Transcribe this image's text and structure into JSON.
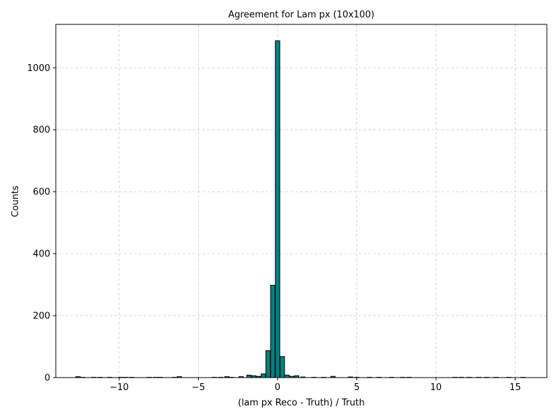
{
  "chart_data": {
    "type": "bar",
    "title": "Agreement for Lam px (10x100)",
    "xlabel": "(lam px Reco - Truth) / Truth",
    "ylabel": "Counts",
    "xlim": [
      -14.0,
      17.0
    ],
    "ylim": [
      0,
      1140
    ],
    "xticks": [
      -10,
      -5,
      0,
      5,
      10,
      15
    ],
    "xtick_labels": [
      "−10",
      "−5",
      "0",
      "5",
      "10",
      "15"
    ],
    "yticks": [
      0,
      200,
      400,
      600,
      800,
      1000
    ],
    "ytick_labels": [
      "0",
      "200",
      "400",
      "600",
      "800",
      "1000"
    ],
    "grid": true,
    "bar_color": "#008080",
    "edge_color": "#000000",
    "bin_width": 0.28,
    "bins": [
      {
        "x": -12.6,
        "value": 3
      },
      {
        "x": -12.3,
        "value": 1
      },
      {
        "x": -11.6,
        "value": 1
      },
      {
        "x": -11.2,
        "value": 1
      },
      {
        "x": -10.6,
        "value": 1
      },
      {
        "x": -9.9,
        "value": 1
      },
      {
        "x": -9.6,
        "value": 1
      },
      {
        "x": -9.2,
        "value": 1
      },
      {
        "x": -8.1,
        "value": 1
      },
      {
        "x": -7.7,
        "value": 1
      },
      {
        "x": -7.4,
        "value": 1
      },
      {
        "x": -6.5,
        "value": 1
      },
      {
        "x": -6.2,
        "value": 3
      },
      {
        "x": -4.0,
        "value": 1
      },
      {
        "x": -3.6,
        "value": 1
      },
      {
        "x": -3.2,
        "value": 3
      },
      {
        "x": -2.9,
        "value": 1
      },
      {
        "x": -2.3,
        "value": 3
      },
      {
        "x": -1.8,
        "value": 8
      },
      {
        "x": -1.5,
        "value": 6
      },
      {
        "x": -1.2,
        "value": 4
      },
      {
        "x": -0.9,
        "value": 12
      },
      {
        "x": -0.6,
        "value": 87
      },
      {
        "x": -0.3,
        "value": 298
      },
      {
        "x": 0.0,
        "value": 1087
      },
      {
        "x": 0.3,
        "value": 68
      },
      {
        "x": 0.6,
        "value": 8
      },
      {
        "x": 0.9,
        "value": 4
      },
      {
        "x": 1.2,
        "value": 6
      },
      {
        "x": 1.6,
        "value": 2
      },
      {
        "x": 2.3,
        "value": 1
      },
      {
        "x": 2.9,
        "value": 1
      },
      {
        "x": 3.5,
        "value": 4
      },
      {
        "x": 4.6,
        "value": 2
      },
      {
        "x": 5.0,
        "value": 1
      },
      {
        "x": 5.8,
        "value": 1
      },
      {
        "x": 6.4,
        "value": 1
      },
      {
        "x": 7.2,
        "value": 1
      },
      {
        "x": 7.9,
        "value": 1
      },
      {
        "x": 8.3,
        "value": 1
      },
      {
        "x": 11.2,
        "value": 1
      },
      {
        "x": 11.6,
        "value": 1
      },
      {
        "x": 12.1,
        "value": 1
      },
      {
        "x": 12.7,
        "value": 1
      },
      {
        "x": 13.2,
        "value": 1
      },
      {
        "x": 13.8,
        "value": 1
      },
      {
        "x": 14.6,
        "value": 1
      },
      {
        "x": 15.5,
        "value": 1
      }
    ]
  }
}
